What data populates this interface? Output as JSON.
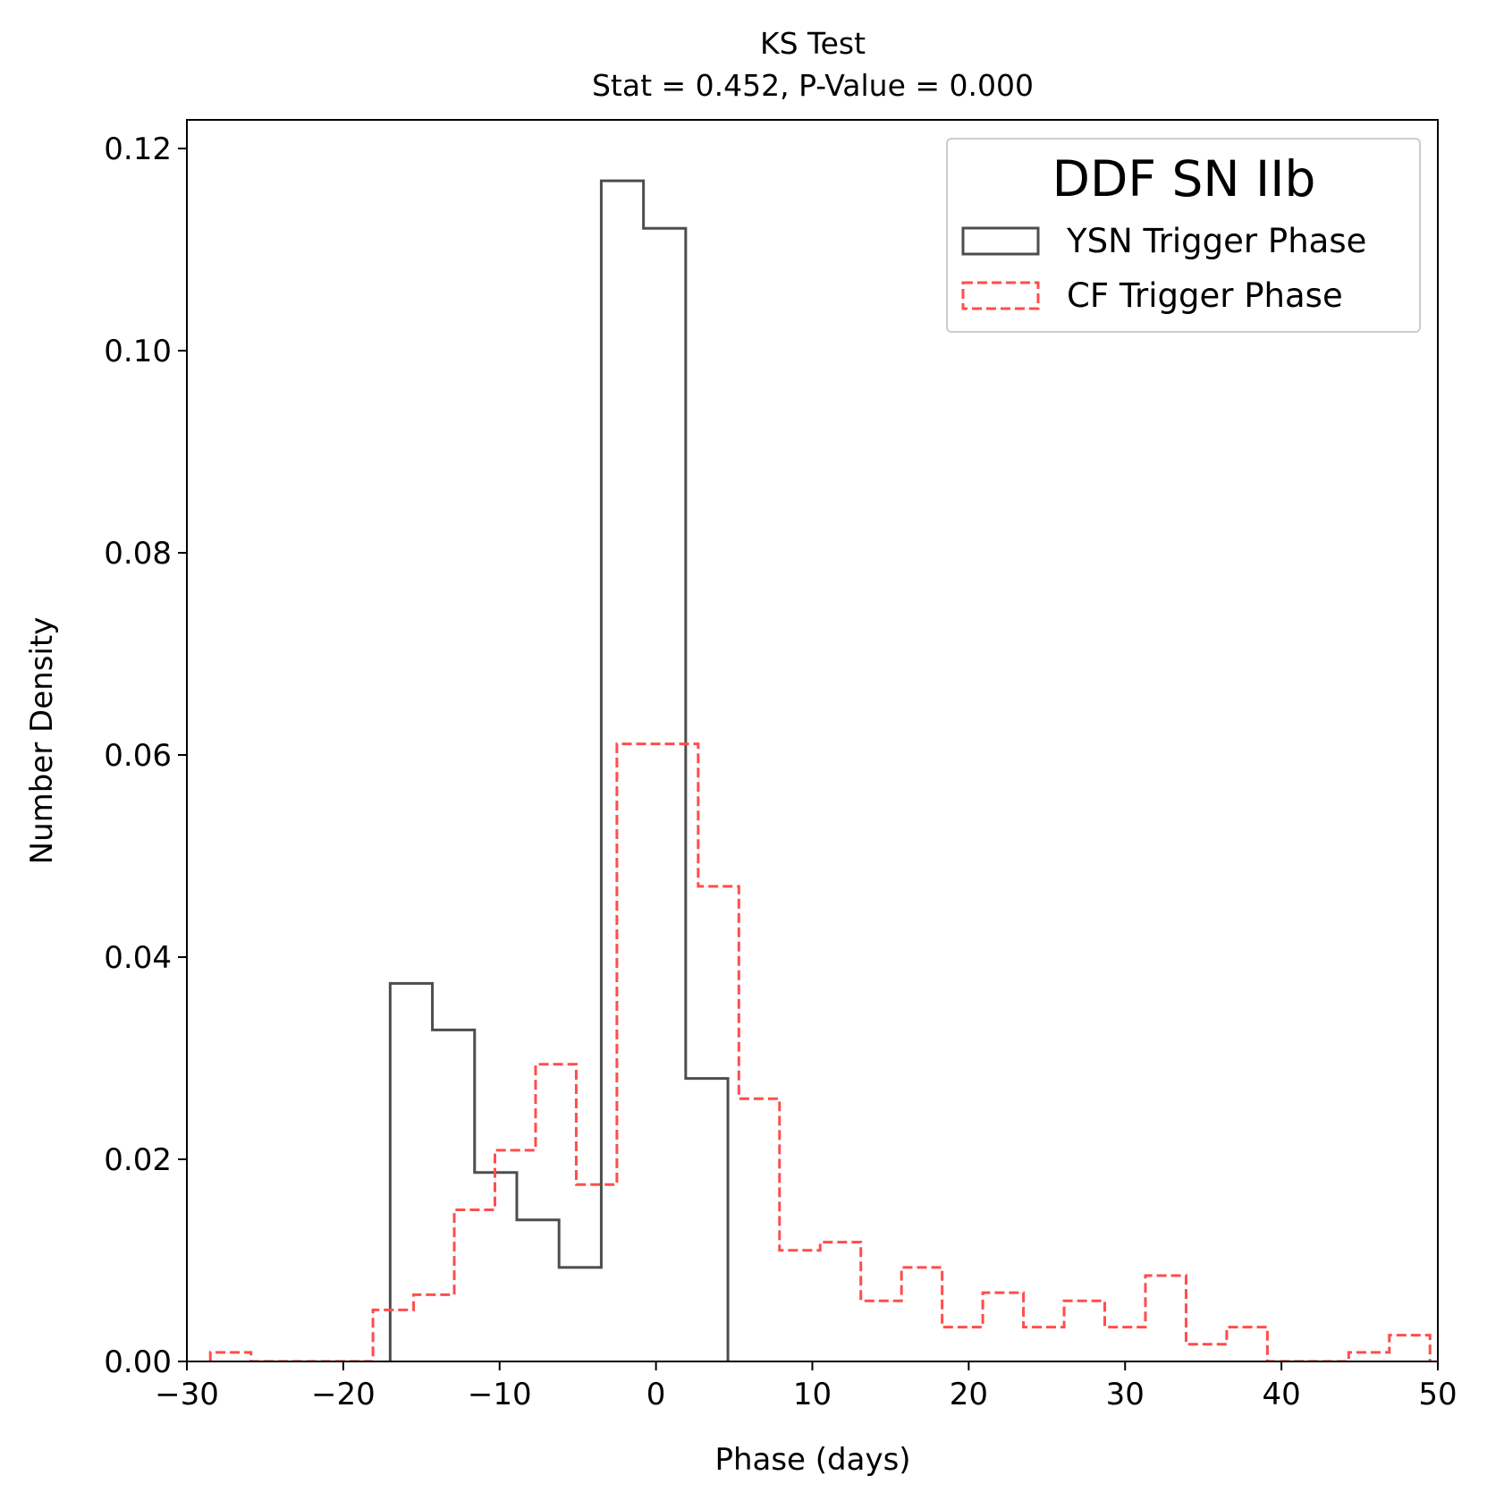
{
  "chart_data": {
    "type": "histogram",
    "title": "KS Test",
    "subtitle": "Stat = 0.452, P-Value = 0.000",
    "xlabel": "Phase (days)",
    "ylabel": "Number Density",
    "xlim": [
      -30,
      50
    ],
    "ylim": [
      0,
      0.123
    ],
    "xticks": [
      -30,
      -20,
      -10,
      0,
      10,
      20,
      30,
      40,
      50
    ],
    "xtick_labels": [
      "−30",
      "−20",
      "−10",
      "0",
      "10",
      "20",
      "30",
      "40",
      "50"
    ],
    "yticks": [
      0,
      0.02,
      0.04,
      0.06,
      0.08,
      0.1,
      0.12
    ],
    "ytick_labels": [
      "0.00",
      "0.02",
      "0.04",
      "0.06",
      "0.08",
      "0.10",
      "0.12"
    ],
    "grid": false,
    "legend": {
      "title": "DDF SN IIb",
      "placement": "upper right"
    },
    "series": [
      {
        "name": "YSN Trigger Phase",
        "style": "solid",
        "color": "#4d4d4d",
        "edges": [
          -17.0,
          -14.3,
          -11.6,
          -8.9,
          -6.2,
          -3.5,
          -0.8,
          1.9,
          4.6
        ],
        "values": [
          0.0374,
          0.0328,
          0.0187,
          0.014,
          0.0093,
          0.1168,
          0.1121,
          0.028
        ]
      },
      {
        "name": "CF Trigger Phase",
        "style": "dashed",
        "color": "#ff4d4d",
        "edges": [
          -28.5,
          -25.9,
          -23.3,
          -20.7,
          -18.1,
          -15.5,
          -12.9,
          -10.3,
          -7.7,
          -5.1,
          -2.5,
          0.1,
          2.7,
          5.3,
          7.9,
          10.5,
          13.1,
          15.7,
          18.3,
          20.9,
          23.5,
          26.1,
          28.7,
          31.3,
          33.9,
          36.5,
          39.1,
          41.7,
          44.3,
          46.9,
          49.5
        ],
        "values": [
          0.0009,
          0.0,
          0.0,
          0.0,
          0.0051,
          0.0066,
          0.015,
          0.0209,
          0.0294,
          0.0175,
          0.0611,
          0.0611,
          0.047,
          0.026,
          0.011,
          0.0118,
          0.006,
          0.0093,
          0.0034,
          0.0068,
          0.0034,
          0.006,
          0.0034,
          0.0085,
          0.0017,
          0.0034,
          0.0,
          0.0,
          0.0009,
          0.0026
        ]
      }
    ]
  }
}
